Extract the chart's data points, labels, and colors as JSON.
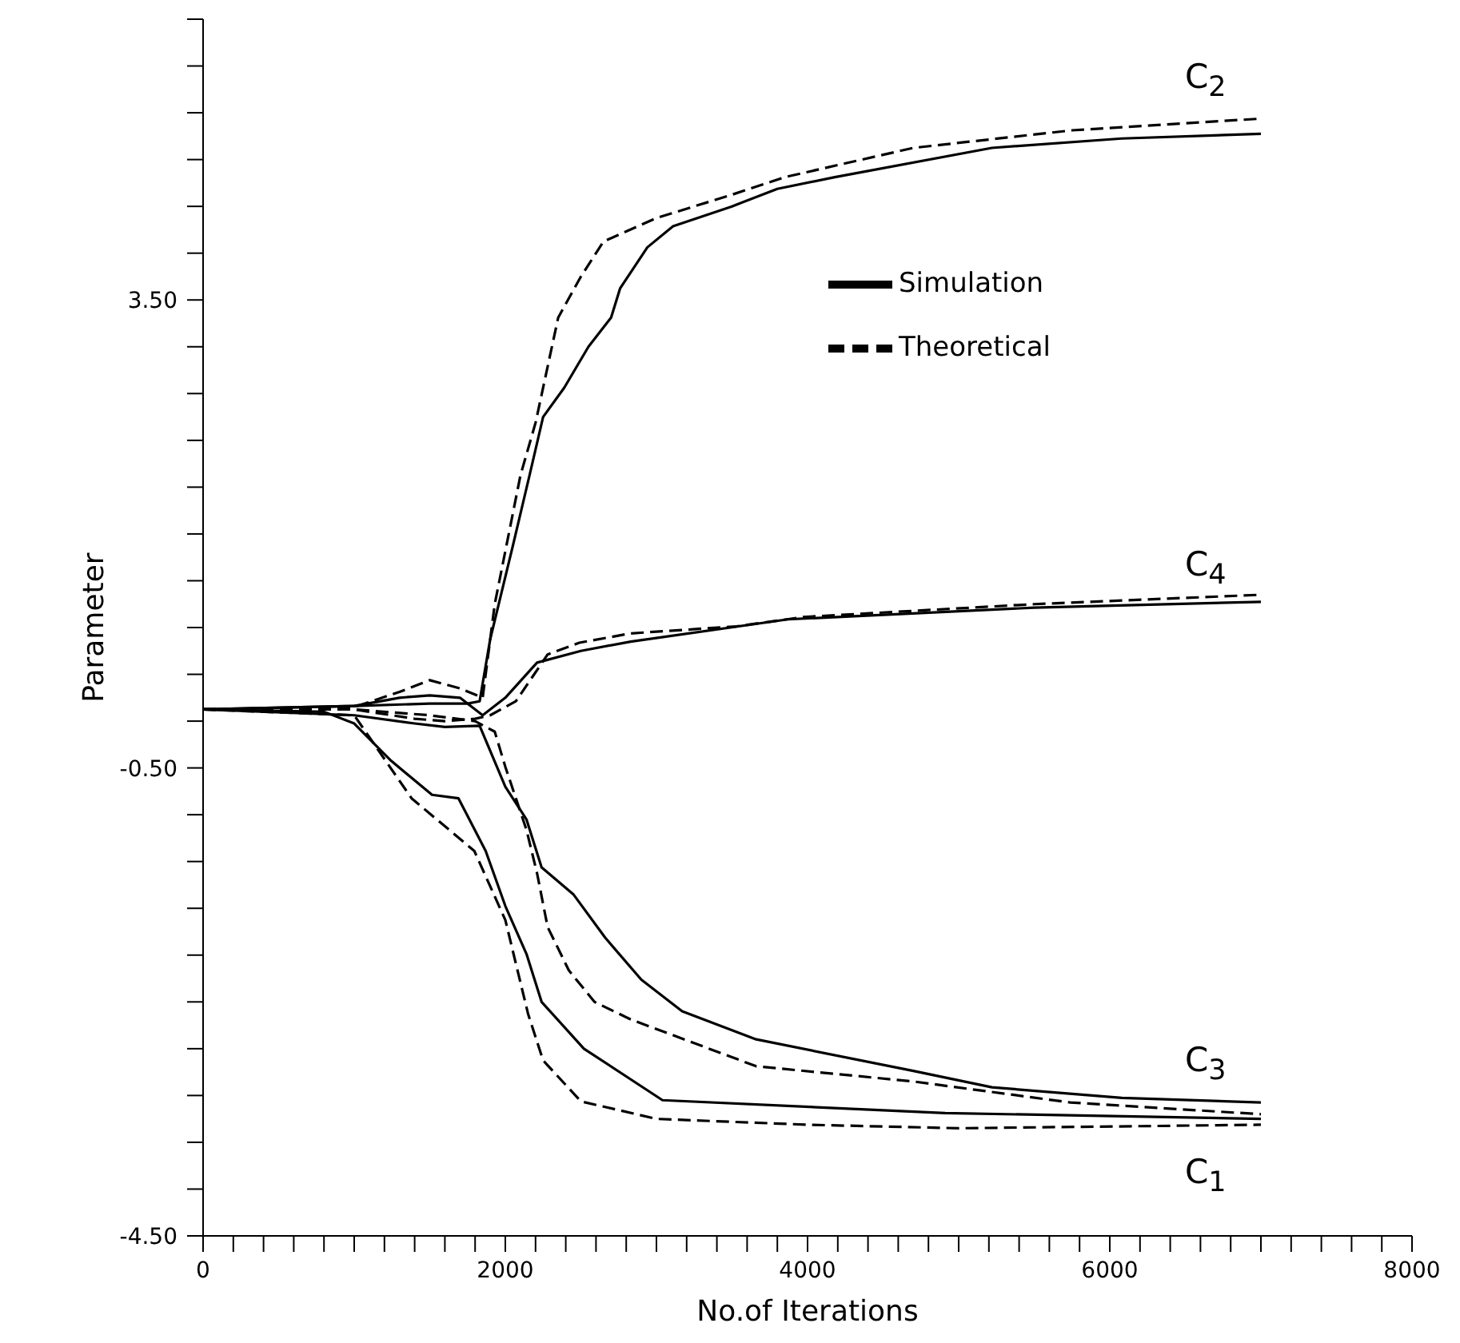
{
  "chart_data": {
    "type": "line",
    "xlabel": "No.of  Iterations",
    "ylabel": "Parameter",
    "xlim": [
      0,
      8000
    ],
    "ylim": [
      -4.5,
      5.9
    ],
    "xticks": [
      0,
      {
        "value": 200,
        "label": null
      },
      {
        "value": 400,
        "label": null
      },
      {
        "value": 600,
        "label": null
      },
      {
        "value": 800,
        "label": null
      },
      {
        "value": 1000,
        "label": null
      },
      {
        "value": 1200,
        "label": null
      },
      {
        "value": 1400,
        "label": null
      },
      {
        "value": 1600,
        "label": null
      },
      {
        "value": 1800,
        "label": null
      },
      2000,
      {
        "value": 2200,
        "label": null
      },
      {
        "value": 2400,
        "label": null
      },
      {
        "value": 2600,
        "label": null
      },
      {
        "value": 2800,
        "label": null
      },
      {
        "value": 3000,
        "label": null
      },
      {
        "value": 3200,
        "label": null
      },
      {
        "value": 3400,
        "label": null
      },
      {
        "value": 3600,
        "label": null
      },
      {
        "value": 3800,
        "label": null
      },
      4000,
      {
        "value": 4200,
        "label": null
      },
      {
        "value": 4400,
        "label": null
      },
      {
        "value": 4600,
        "label": null
      },
      {
        "value": 4800,
        "label": null
      },
      {
        "value": 5000,
        "label": null
      },
      {
        "value": 5200,
        "label": null
      },
      {
        "value": 5400,
        "label": null
      },
      {
        "value": 5600,
        "label": null
      },
      {
        "value": 5800,
        "label": null
      },
      6000,
      {
        "value": 6200,
        "label": null
      },
      {
        "value": 6400,
        "label": null
      },
      {
        "value": 6600,
        "label": null
      },
      {
        "value": 6800,
        "label": null
      },
      {
        "value": 7000,
        "label": null
      },
      {
        "value": 7200,
        "label": null
      },
      {
        "value": 7400,
        "label": null
      },
      {
        "value": 7600,
        "label": null
      },
      {
        "value": 7800,
        "label": null
      },
      8000
    ],
    "yticks": [
      {
        "value": -4.5,
        "label": "-4.50"
      },
      {
        "value": -4.1,
        "label": null
      },
      {
        "value": -3.7,
        "label": null
      },
      {
        "value": -3.3,
        "label": null
      },
      {
        "value": -2.9,
        "label": null
      },
      {
        "value": -2.5,
        "label": null
      },
      {
        "value": -2.1,
        "label": null
      },
      {
        "value": -1.7,
        "label": null
      },
      {
        "value": -1.3,
        "label": null
      },
      {
        "value": -0.9,
        "label": null
      },
      {
        "value": -0.5,
        "label": "-0.50"
      },
      {
        "value": -0.1,
        "label": null
      },
      {
        "value": 0.3,
        "label": null
      },
      {
        "value": 0.7,
        "label": null
      },
      {
        "value": 1.1,
        "label": null
      },
      {
        "value": 1.5,
        "label": null
      },
      {
        "value": 1.9,
        "label": null
      },
      {
        "value": 2.3,
        "label": null
      },
      {
        "value": 2.7,
        "label": null
      },
      {
        "value": 3.1,
        "label": null
      },
      {
        "value": 3.5,
        "label": "3.50"
      },
      {
        "value": 3.9,
        "label": null
      },
      {
        "value": 4.3,
        "label": null
      },
      {
        "value": 4.7,
        "label": null
      },
      {
        "value": 5.1,
        "label": null
      },
      {
        "value": 5.5,
        "label": null
      },
      {
        "value": 5.9,
        "label": null
      }
    ],
    "legend": "top right",
    "series": [
      {
        "name": "Theoretical",
        "color": "#000000",
        "line_style": "dashed",
        "x": [
          0,
          1000,
          1300,
          1500,
          1700,
          1850,
          1930,
          2100,
          2200,
          2350,
          2500,
          2650,
          3000,
          3500,
          3850,
          4700,
          5750,
          7000
        ],
        "values": [
          0,
          0.02,
          0.15,
          0.25,
          0.18,
          0.1,
          0.9,
          2.0,
          2.45,
          3.35,
          3.7,
          4.0,
          4.2,
          4.4,
          4.55,
          4.8,
          4.95,
          5.05
        ]
      },
      {
        "name": "Simulation",
        "color": "#000000",
        "line_style": "solid",
        "x": [
          0,
          1000,
          1500,
          1750,
          1830,
          1900,
          2050,
          2160,
          2250,
          2390,
          2550,
          2700,
          2760,
          2940,
          3110,
          3500,
          3800,
          4180,
          5220,
          6080,
          7000
        ],
        "values": [
          0,
          0.03,
          0.05,
          0.05,
          0.07,
          0.6,
          1.4,
          2.0,
          2.5,
          2.75,
          3.1,
          3.35,
          3.6,
          3.95,
          4.13,
          4.3,
          4.45,
          4.55,
          4.8,
          4.88,
          4.92
        ]
      },
      {
        "color": "#000000",
        "line_style": "dashed",
        "x": [
          0,
          1000,
          1400,
          1600,
          1800,
          1900,
          2070,
          2280,
          2490,
          2830,
          3530,
          3970,
          5500,
          7000
        ],
        "values": [
          0,
          0,
          -0.08,
          -0.1,
          -0.08,
          -0.05,
          0.07,
          0.47,
          0.57,
          0.65,
          0.71,
          0.79,
          0.9,
          0.98
        ]
      },
      {
        "color": "#000000",
        "line_style": "solid",
        "x": [
          0,
          1000,
          1300,
          1500,
          1700,
          1850,
          2000,
          2210,
          2500,
          2830,
          3870,
          5500,
          7000
        ],
        "values": [
          0,
          0.03,
          0.1,
          0.12,
          0.1,
          -0.05,
          0.1,
          0.4,
          0.5,
          0.58,
          0.77,
          0.87,
          0.92
        ]
      },
      {
        "color": "#000000",
        "line_style": "dashed",
        "x": [
          0,
          1000,
          1380,
          1795,
          2000,
          2150,
          2250,
          2500,
          3000,
          4000,
          5000,
          7000
        ],
        "values": [
          0,
          -0.05,
          -0.76,
          -1.21,
          -1.8,
          -2.6,
          -3.0,
          -3.35,
          -3.5,
          -3.55,
          -3.58,
          -3.55
        ]
      },
      {
        "color": "#000000",
        "line_style": "solid",
        "x": [
          0,
          800,
          1000,
          1245,
          1515,
          1690,
          1870,
          2000,
          2140,
          2240,
          2520,
          3040,
          4910,
          7000
        ],
        "values": [
          0,
          -0.02,
          -0.12,
          -0.44,
          -0.73,
          -0.76,
          -1.21,
          -1.68,
          -2.09,
          -2.5,
          -2.9,
          -3.34,
          -3.45,
          -3.5
        ]
      },
      {
        "color": "#000000",
        "line_style": "dashed",
        "x": [
          0,
          1000,
          1500,
          1800,
          1930,
          2000,
          2140,
          2210,
          2280,
          2420,
          2590,
          2830,
          3660,
          4700,
          5740,
          7000
        ],
        "values": [
          0,
          0,
          -0.05,
          -0.1,
          -0.19,
          -0.49,
          -1.03,
          -1.4,
          -1.86,
          -2.23,
          -2.5,
          -2.65,
          -3.05,
          -3.18,
          -3.36,
          -3.46
        ]
      },
      {
        "color": "#000000",
        "line_style": "solid",
        "x": [
          0,
          1000,
          1400,
          1600,
          1830,
          2000,
          2140,
          2240,
          2450,
          2660,
          2900,
          3170,
          3660,
          4700,
          5220,
          6080,
          7000
        ],
        "values": [
          0,
          -0.05,
          -0.12,
          -0.15,
          -0.14,
          -0.66,
          -0.94,
          -1.35,
          -1.58,
          -1.95,
          -2.31,
          -2.58,
          -2.82,
          -3.09,
          -3.23,
          -3.32,
          -3.36
        ]
      }
    ],
    "annotations": [
      "C$_{2}$",
      "C$_{4}$",
      "C$_{3}$",
      "C$_{1}$"
    ]
  }
}
